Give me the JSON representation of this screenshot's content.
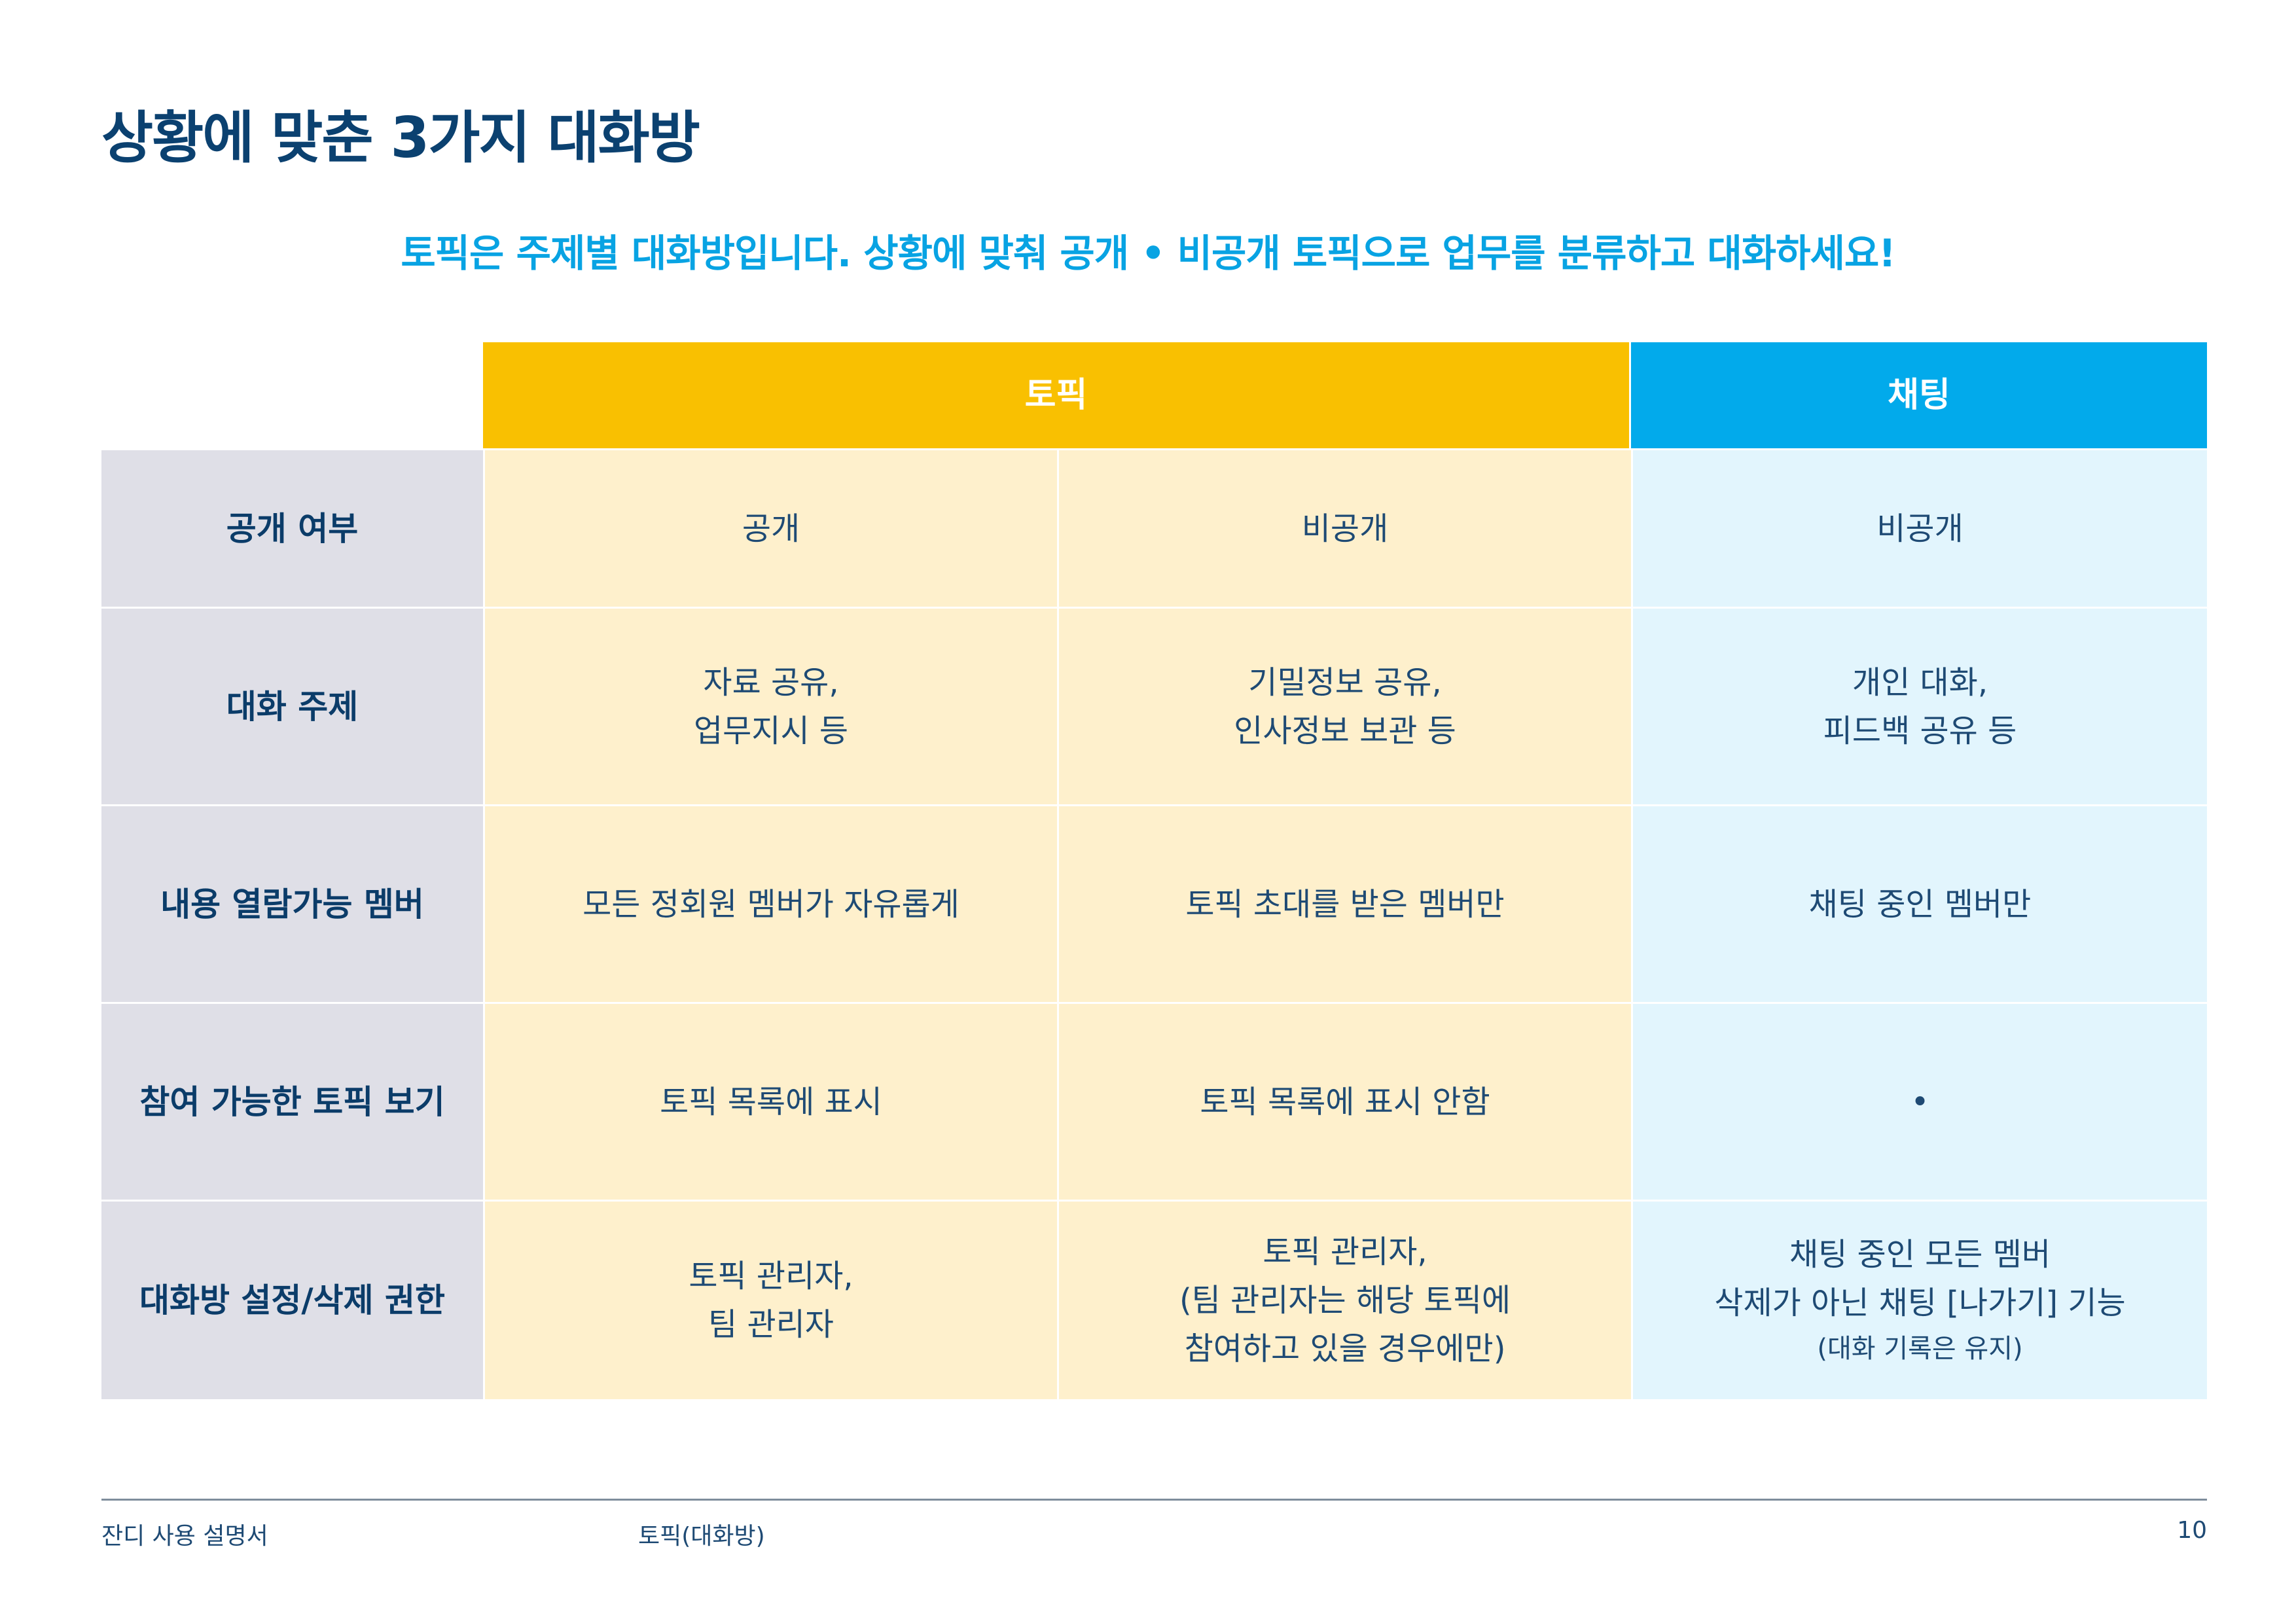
{
  "title": "상황에 맞춘 3가지 대화방",
  "subtitle": "토픽은 주제별 대화방입니다. 상황에 맞춰 공개 • 비공개 토픽으로 업무를 분류하고 대화하세요!",
  "table": {
    "headers": {
      "topic": "토픽",
      "chat": "채팅"
    },
    "rows": [
      {
        "label": "공개 여부",
        "topic_public": [
          "공개"
        ],
        "topic_private": [
          "비공개"
        ],
        "chat": [
          "비공개"
        ]
      },
      {
        "label": "대화 주제",
        "topic_public": [
          "자료 공유,",
          "업무지시 등"
        ],
        "topic_private": [
          "기밀정보 공유,",
          "인사정보 보관 등"
        ],
        "chat": [
          "개인 대화,",
          "피드백 공유 등"
        ]
      },
      {
        "label": "내용 열람가능 멤버",
        "topic_public": [
          "모든 정회원 멤버가 자유롭게"
        ],
        "topic_private": [
          "토픽 초대를 받은 멤버만"
        ],
        "chat": [
          "채팅 중인 멤버만"
        ]
      },
      {
        "label": "참여 가능한 토픽 보기",
        "topic_public": [
          "토픽 목록에 표시"
        ],
        "topic_private": [
          "토픽 목록에 표시 안함"
        ],
        "chat": [
          "•"
        ]
      },
      {
        "label": "대화방 설정/삭제 권한",
        "topic_public": [
          "토픽 관리자,",
          "팀 관리자"
        ],
        "topic_private": [
          "토픽 관리자,",
          "(팀 관리자는 해당 토픽에",
          "참여하고 있을 경우에만)"
        ],
        "chat": [
          "채팅 중인 모든 멤버",
          "삭제가 아닌 채팅 [나가기] 기능"
        ],
        "chat_note": "(대화 기록은 유지)"
      }
    ]
  },
  "footer": {
    "doc_name": "잔디 사용 설명서",
    "section": "토픽(대화방)",
    "page_number": "10"
  },
  "colors": {
    "topic_header": "#f9c001",
    "chat_header": "#02aaeb",
    "label_bg": "#dfdfe7",
    "topic_bg": "#fef0cc",
    "chat_bg": "#e2f5fd",
    "title": "#0b4170",
    "subtitle": "#08a3e3"
  }
}
